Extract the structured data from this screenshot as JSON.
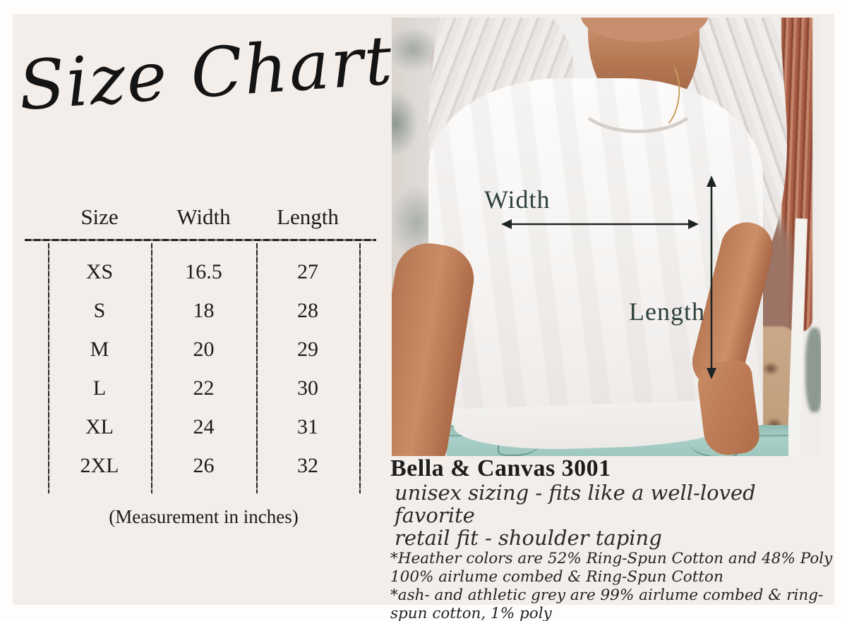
{
  "title": "Size Chart",
  "table": {
    "headers": [
      "Size",
      "Width",
      "Length"
    ],
    "rows": [
      [
        "XS",
        "16.5",
        "27"
      ],
      [
        "S",
        "18",
        "28"
      ],
      [
        "M",
        "20",
        "29"
      ],
      [
        "L",
        "22",
        "30"
      ],
      [
        "XL",
        "24",
        "31"
      ],
      [
        "2XL",
        "26",
        "32"
      ]
    ],
    "note": "(Measurement in inches)"
  },
  "photo": {
    "width_label": "Width",
    "length_label": "Length"
  },
  "product": {
    "name": "Bella & Canvas 3001",
    "line1": "unisex sizing - fits like a well-loved favorite",
    "line2": "retail fit - shoulder taping",
    "note1": "*Heather colors are 52% Ring-Spun Cotton and 48% Poly",
    "note2": "100% airlume combed & Ring-Spun Cotton",
    "note3": "*ash- and athletic grey are 99% airlume combed & ring-spun cotton, 1% poly"
  },
  "colors": {
    "panel_cream": "#f4eeea",
    "text_dark": "#1c1c1c",
    "annotation_slate": "#2e403d",
    "arrow_black": "#1c2424",
    "jeans_teal": "#a5ccc4",
    "copper_drape": "#a95f45",
    "skin_tan": "#c58868",
    "hair_platinum": "#eceae8"
  },
  "chart_data": {
    "type": "table",
    "title": "Size Chart",
    "columns": [
      "Size",
      "Width",
      "Length"
    ],
    "rows": [
      [
        "XS",
        16.5,
        27
      ],
      [
        "S",
        18,
        28
      ],
      [
        "M",
        20,
        29
      ],
      [
        "L",
        22,
        30
      ],
      [
        "XL",
        24,
        31
      ],
      [
        "2XL",
        26,
        32
      ]
    ],
    "units": "inches",
    "footnote": "(Measurement in inches)"
  }
}
